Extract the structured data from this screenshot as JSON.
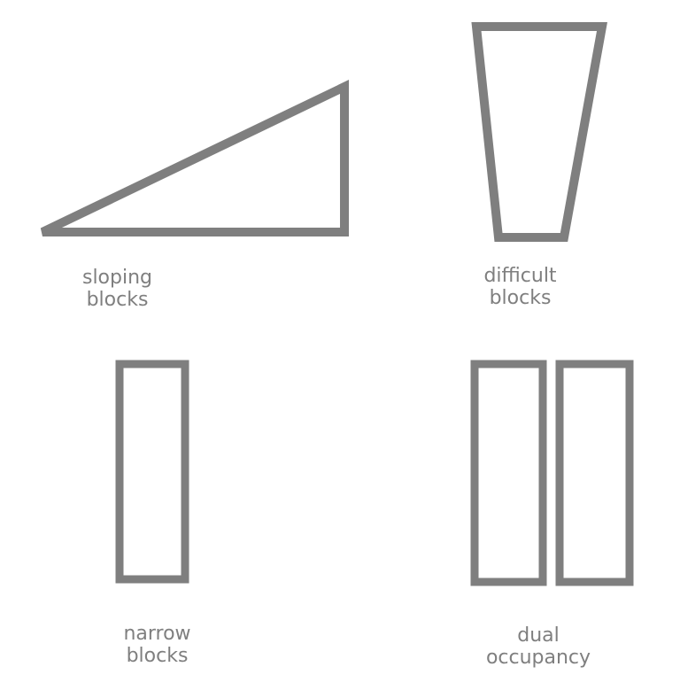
{
  "colors": {
    "stroke": "#7f7f7f",
    "text": "#7f7f7f",
    "background": "#ffffff"
  },
  "labels": {
    "sloping": {
      "line1": "sloping",
      "line2": "blocks"
    },
    "difficult": {
      "line1": "difficult",
      "line2": "blocks"
    },
    "narrow": {
      "line1": "narrow",
      "line2": "blocks"
    },
    "dual": {
      "line1": "dual",
      "line2": "occupancy"
    }
  }
}
